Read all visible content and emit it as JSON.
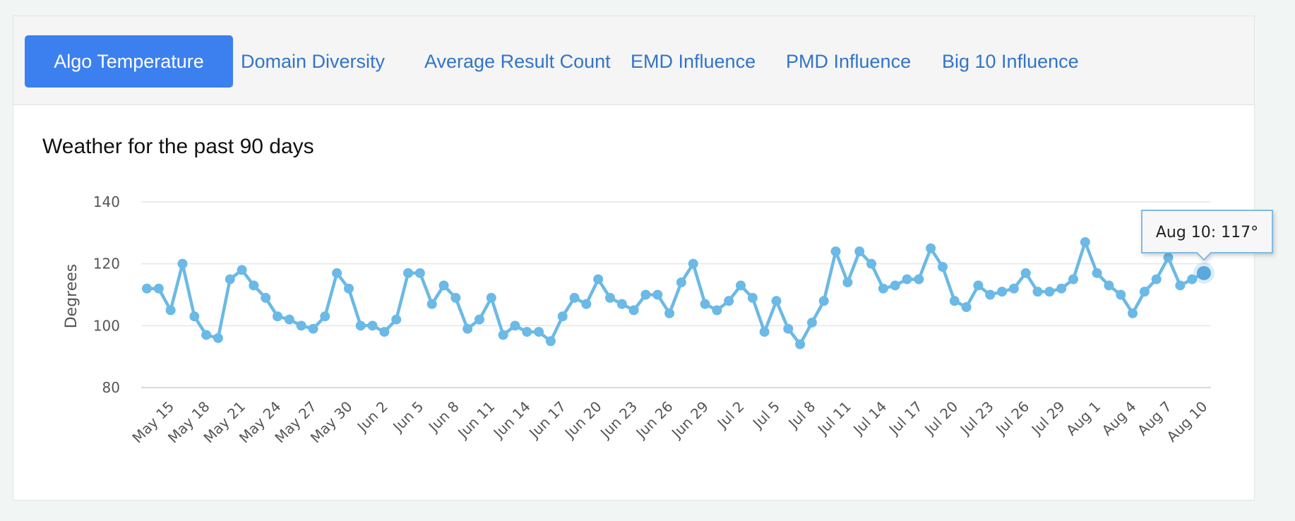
{
  "tabs": [
    {
      "label": "Algo Temperature",
      "active": true
    },
    {
      "label": "Domain Diversity",
      "active": false
    },
    {
      "label": "Average Result Count",
      "active": false
    },
    {
      "label": "EMD Influence",
      "active": false
    },
    {
      "label": "PMD Influence",
      "active": false
    },
    {
      "label": "Big 10 Influence",
      "active": false
    }
  ],
  "colors": {
    "accent": "#3c80f0",
    "tab_text": "#3274c9",
    "series": "#6bb9e6"
  },
  "chart_data": {
    "type": "line",
    "title": "Weather for the past 90 days",
    "ylabel": "Degrees",
    "xlabel": "",
    "ylim": [
      80,
      140
    ],
    "yticks": [
      80,
      100,
      120,
      140
    ],
    "grid": true,
    "xtick_labels": [
      "May 15",
      "May 18",
      "May 21",
      "May 24",
      "May 27",
      "May 30",
      "Jun 2",
      "Jun 5",
      "Jun 8",
      "Jun 11",
      "Jun 14",
      "Jun 17",
      "Jun 20",
      "Jun 23",
      "Jun 26",
      "Jun 29",
      "Jul 2",
      "Jul 5",
      "Jul 8",
      "Jul 11",
      "Jul 14",
      "Jul 17",
      "Jul 20",
      "Jul 23",
      "Jul 26",
      "Jul 29",
      "Aug 1",
      "Aug 4",
      "Aug 7",
      "Aug 10"
    ],
    "x_start": "May 13",
    "x_end": "Aug 10",
    "series": [
      {
        "values": [
          112,
          112,
          105,
          120,
          103,
          97,
          96,
          115,
          118,
          113,
          109,
          103,
          102,
          100,
          99,
          103,
          117,
          112,
          100,
          100,
          98,
          102,
          117,
          117,
          107,
          113,
          109,
          99,
          102,
          109,
          97,
          100,
          98,
          98,
          95,
          103,
          109,
          107,
          115,
          109,
          107,
          105,
          110,
          110,
          104,
          114,
          120,
          107,
          105,
          108,
          113,
          109,
          98,
          108,
          99,
          94,
          101,
          108,
          124,
          114,
          124,
          120,
          112,
          113,
          115,
          115,
          125,
          119,
          108,
          106,
          113,
          110,
          111,
          112,
          117,
          111,
          111,
          112,
          115,
          127,
          117,
          113,
          110,
          104,
          111,
          115,
          122,
          113,
          115,
          117
        ]
      }
    ],
    "tooltip": {
      "text": "Aug 10: 117°",
      "value": 117
    }
  }
}
